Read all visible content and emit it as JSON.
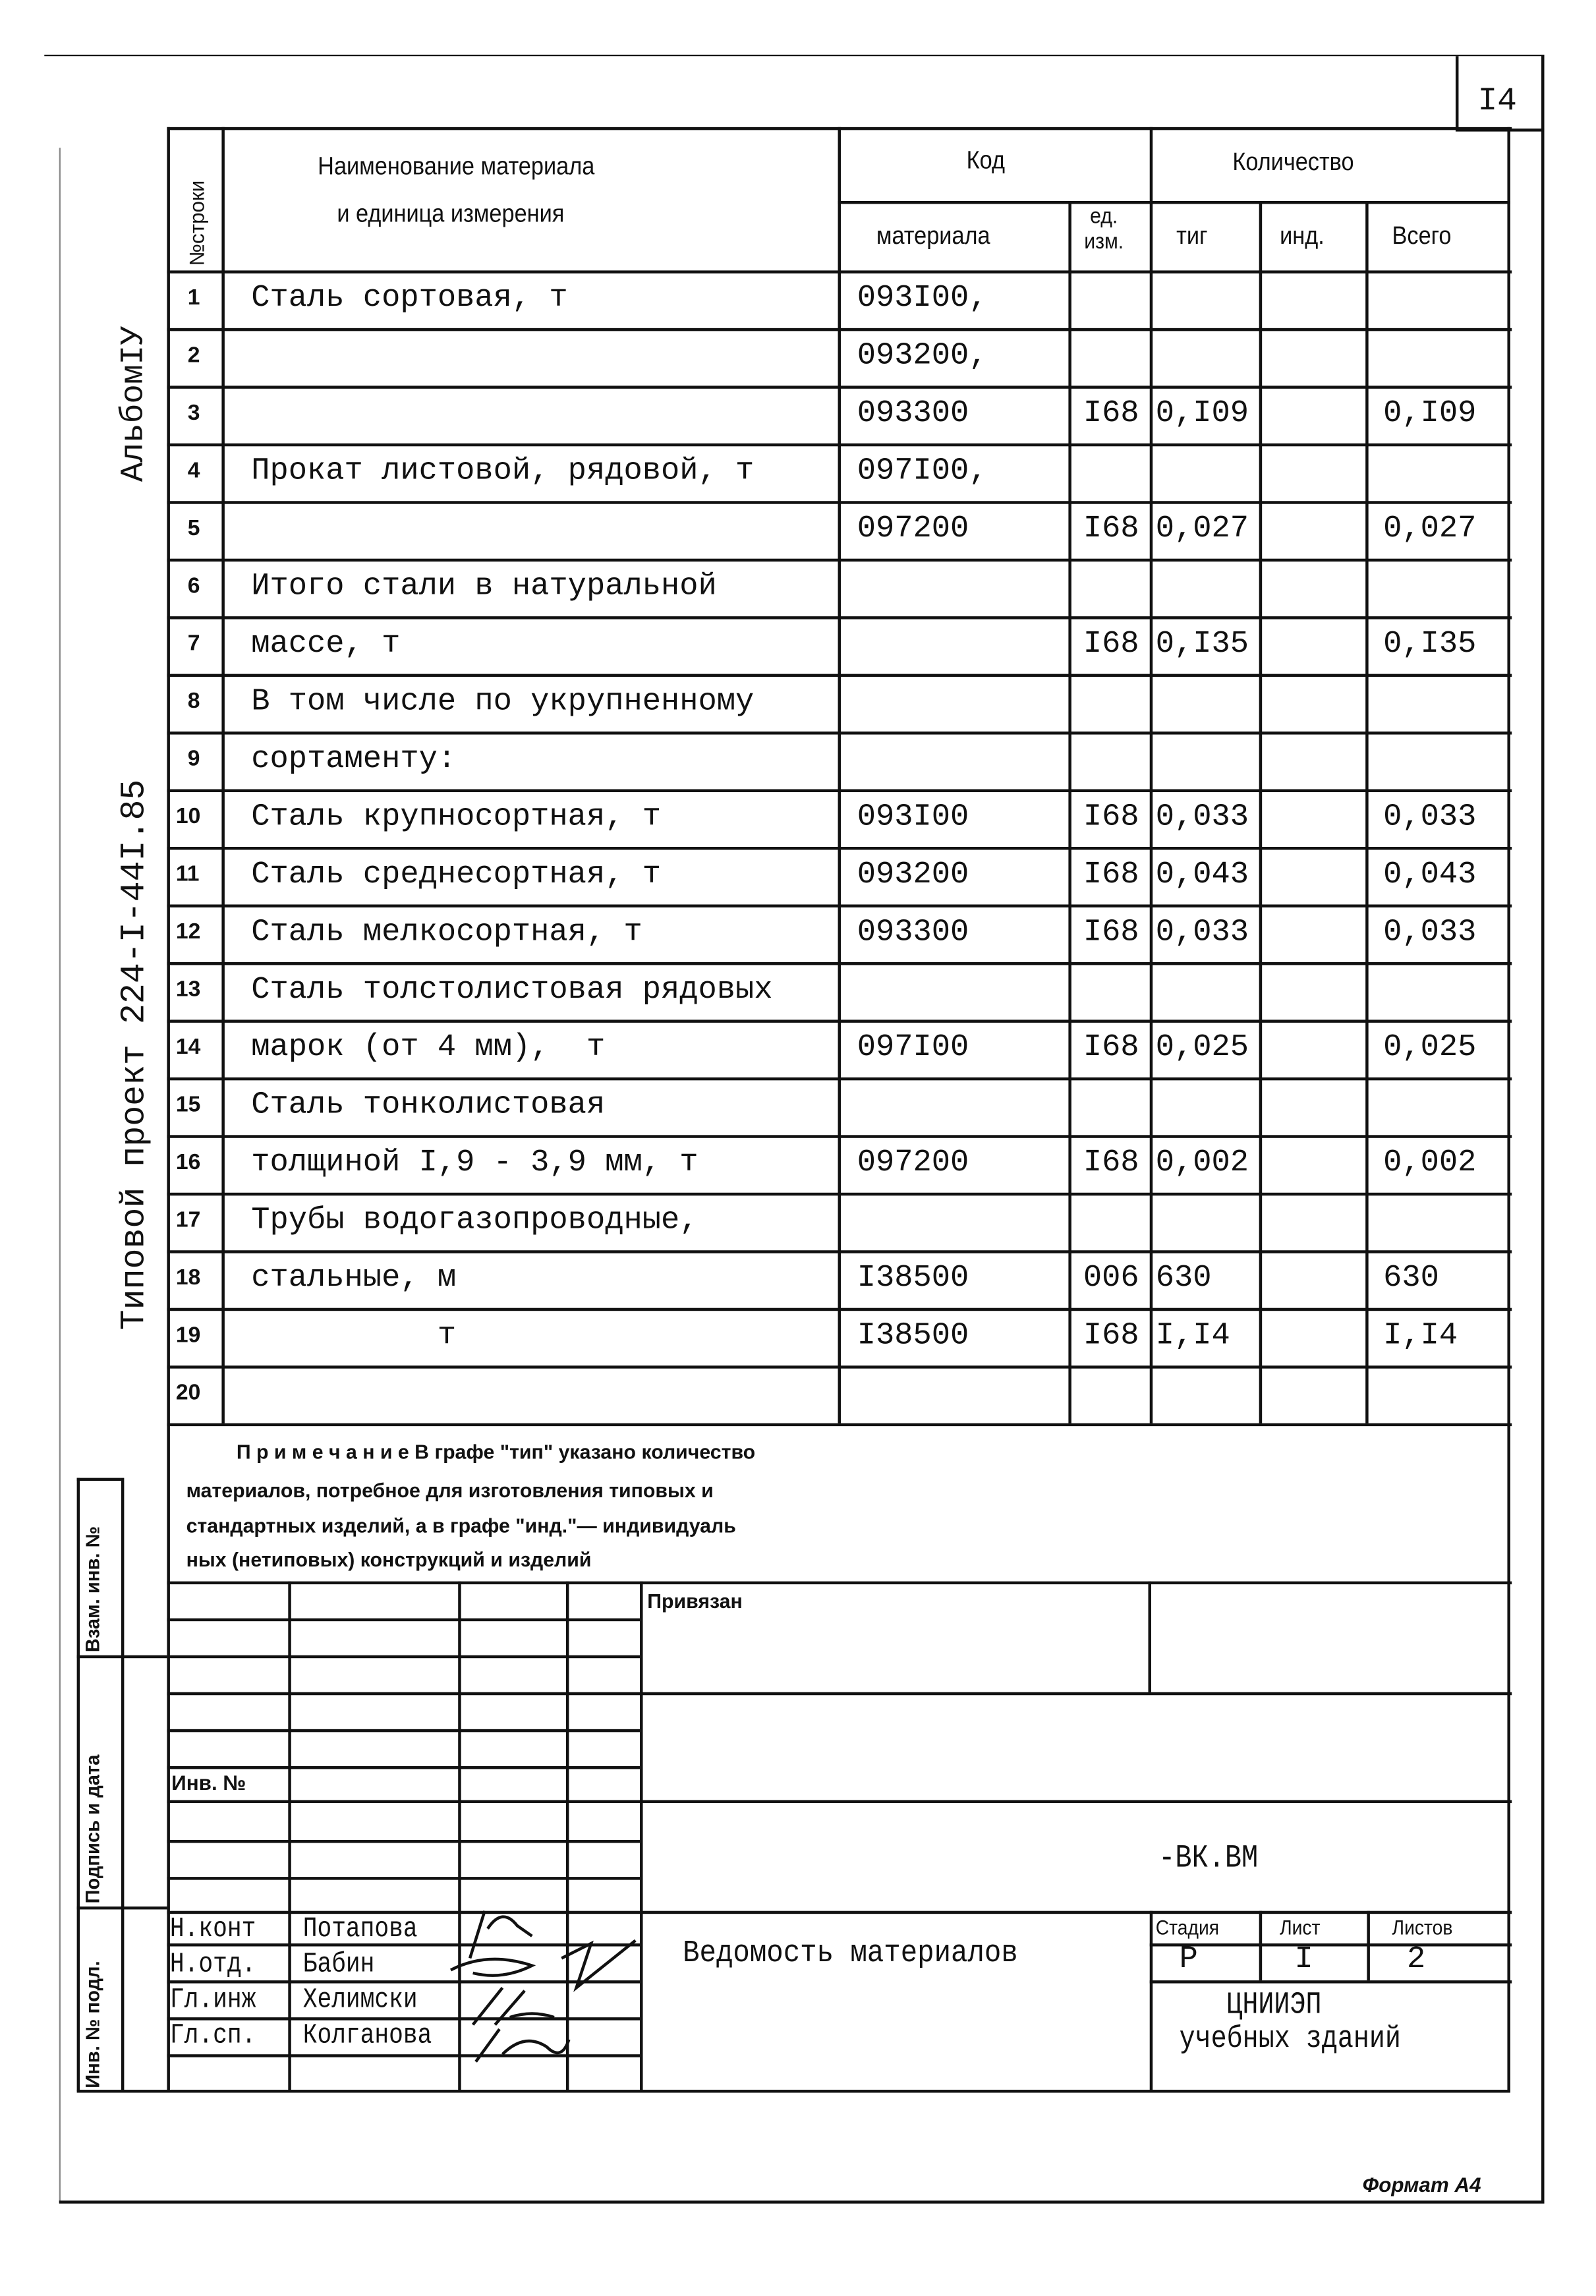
{
  "sheet_number": "I4",
  "side_labels": {
    "album": "АльбомIУ",
    "project": "Типовой проект 224-I-44I.85",
    "stamp_replacement": "Взам. инв. №",
    "stamp_signature": "Подпись и дата",
    "stamp_inventory": "Инв. № подл."
  },
  "header": {
    "row_no": "№строки",
    "name_line1": "Наименование материала",
    "name_line2": "и единица измерения",
    "code": "Код",
    "code_material": "материала",
    "unit": "ед. изм.",
    "quantity": "Количество",
    "tip": "тиг",
    "ind": "инд.",
    "total": "Всего"
  },
  "rows": [
    {
      "n": "1",
      "name": "Сталь сортовая, т",
      "code": "093I00,",
      "unit": "",
      "tip": "",
      "ind": "",
      "total": ""
    },
    {
      "n": "2",
      "name": "",
      "code": "093200,",
      "unit": "",
      "tip": "",
      "ind": "",
      "total": ""
    },
    {
      "n": "3",
      "name": "",
      "code": "093300",
      "unit": "I68",
      "tip": "0,I09",
      "ind": "",
      "total": "0,I09"
    },
    {
      "n": "4",
      "name": "Прокат листовой, рядовой, т",
      "code": "097I00,",
      "unit": "",
      "tip": "",
      "ind": "",
      "total": ""
    },
    {
      "n": "5",
      "name": "",
      "code": "097200",
      "unit": "I68",
      "tip": "0,027",
      "ind": "",
      "total": "0,027"
    },
    {
      "n": "6",
      "name": "Итого стали в натуральной",
      "code": "",
      "unit": "",
      "tip": "",
      "ind": "",
      "total": ""
    },
    {
      "n": "7",
      "name": "массе, т",
      "code": "",
      "unit": "I68",
      "tip": "0,I35",
      "ind": "",
      "total": "0,I35"
    },
    {
      "n": "8",
      "name": "В том числе по укрупненному",
      "code": "",
      "unit": "",
      "tip": "",
      "ind": "",
      "total": ""
    },
    {
      "n": "9",
      "name": "сортаменту:",
      "code": "",
      "unit": "",
      "tip": "",
      "ind": "",
      "total": ""
    },
    {
      "n": "10",
      "name": "Сталь крупносортная, т",
      "code": "093I00",
      "unit": "I68",
      "tip": "0,033",
      "ind": "",
      "total": "0,033"
    },
    {
      "n": "11",
      "name": "Сталь среднесортная, т",
      "code": "093200",
      "unit": "I68",
      "tip": "0,043",
      "ind": "",
      "total": "0,043"
    },
    {
      "n": "12",
      "name": "Сталь мелкосортная, т",
      "code": "093300",
      "unit": "I68",
      "tip": "0,033",
      "ind": "",
      "total": "0,033"
    },
    {
      "n": "13",
      "name": "Сталь толстолистовая рядовых",
      "code": "",
      "unit": "",
      "tip": "",
      "ind": "",
      "total": ""
    },
    {
      "n": "14",
      "name": "марок (от 4 мм),  т",
      "code": "097I00",
      "unit": "I68",
      "tip": "0,025",
      "ind": "",
      "total": "0,025"
    },
    {
      "n": "15",
      "name": "Сталь тонколистовая",
      "code": "",
      "unit": "",
      "tip": "",
      "ind": "",
      "total": ""
    },
    {
      "n": "16",
      "name": "толщиной I,9 - 3,9 мм, т",
      "code": "097200",
      "unit": "I68",
      "tip": "0,002",
      "ind": "",
      "total": "0,002"
    },
    {
      "n": "17",
      "name": "Трубы водогазопроводные,",
      "code": "",
      "unit": "",
      "tip": "",
      "ind": "",
      "total": ""
    },
    {
      "n": "18",
      "name": "стальные, м",
      "code": "I38500",
      "unit": "006",
      "tip": "630",
      "ind": "",
      "total": "630"
    },
    {
      "n": "19",
      "name": "          т",
      "code": "I38500",
      "unit": "I68",
      "tip": "I,I4",
      "ind": "",
      "total": "I,I4"
    },
    {
      "n": "20",
      "name": "",
      "code": "",
      "unit": "",
      "tip": "",
      "ind": "",
      "total": ""
    }
  ],
  "note": {
    "line1": "П р и м е ч а н и е  В графе \"тип\" указано количество",
    "line2": "материалов, потребное для изготовления типовых и",
    "line3": "стандартных изделий, а в графе \"инд.\"— индивидуаль",
    "line4": "ных (нетиповых) конструкций и изделий"
  },
  "title_block": {
    "attached": "Привязан",
    "inv_no": "Инв. №",
    "doc_code": "-ВК.ВМ",
    "doc_title": "Ведомость материалов",
    "stage_label": "Стадия",
    "sheet_label": "Лист",
    "sheets_label": "Листов",
    "stage": "Р",
    "sheet": "I",
    "sheets": "2",
    "org_line1": "ЦНИИЭП",
    "org_line2": "учебных зданий",
    "signers": [
      {
        "role": "Н.конт",
        "name": "Потапова"
      },
      {
        "role": "Н.отд.",
        "name": "Бабин"
      },
      {
        "role": "Гл.инж",
        "name": "Хелимски"
      },
      {
        "role": "Гл.сп.",
        "name": "Колганова"
      }
    ]
  },
  "format": "Формат А4"
}
